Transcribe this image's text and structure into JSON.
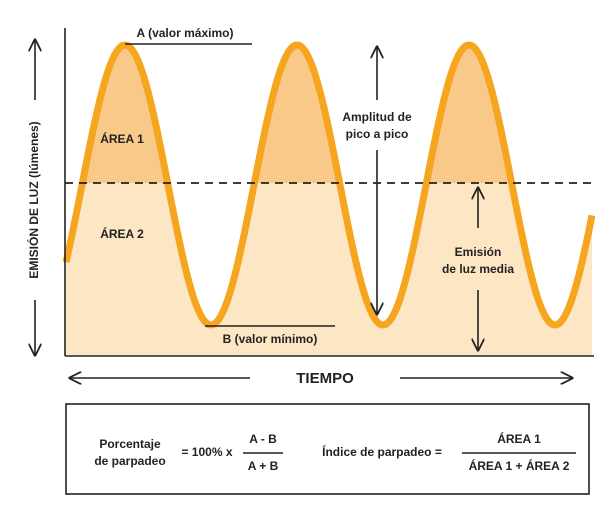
{
  "diagram": {
    "y_axis_label": "EMISIÓN DE LUZ (lúmenes)",
    "x_axis_label": "TIEMPO",
    "max_label": "A (valor máximo)",
    "min_label": "B (valor mínimo)",
    "area1_label": "ÁREA 1",
    "area2_label": "ÁREA 2",
    "amplitude_label": [
      "Amplitud de",
      "pico a pico"
    ],
    "mean_label": [
      "Emisión",
      "de luz media"
    ]
  },
  "formulas": {
    "percent_label": [
      "Porcentaje",
      "de parpadeo"
    ],
    "percent_equals": "= 100% x",
    "percent_numerator": "A - B",
    "percent_denominator": "A + B",
    "index_label": "Índice de parpadeo =",
    "index_numerator": "ÁREA 1",
    "index_denominator": "ÁREA 1 + ÁREA 2"
  }
}
